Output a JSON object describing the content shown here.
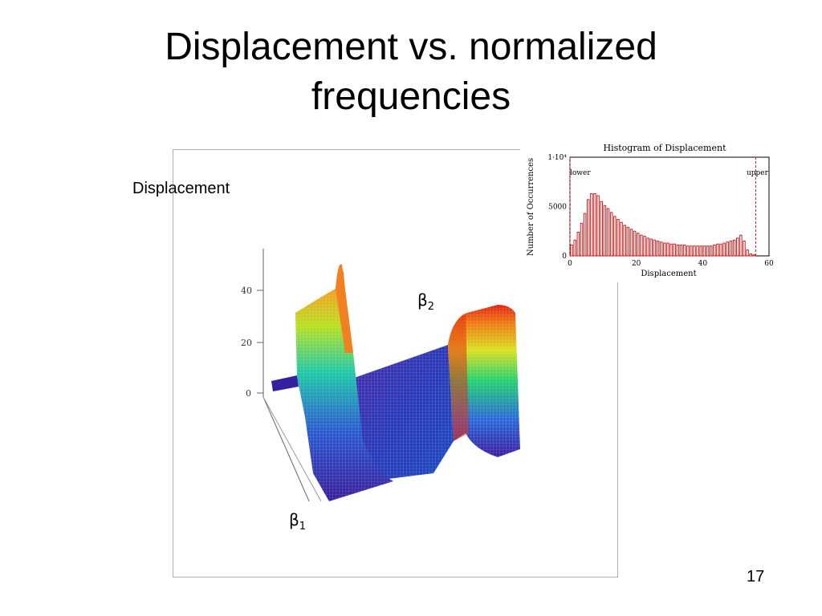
{
  "slide": {
    "title_line1": "Displacement vs. normalized",
    "title_line2": "frequencies",
    "page_number": "17"
  },
  "surface_plot": {
    "z_label": "Displacement",
    "axis1_label": "β",
    "axis1_sub": "1",
    "axis2_label": "β",
    "axis2_sub": "2",
    "z_ticks": [
      "40",
      "20",
      "0"
    ]
  },
  "chart_data": {
    "type": "bar",
    "title": "Histogram of Displacement",
    "xlabel": "Displacement",
    "ylabel": "Number of Occurrences",
    "xlim": [
      0,
      60
    ],
    "ylim": [
      0,
      10000
    ],
    "x_ticks": [
      "0",
      "20",
      "40",
      "60"
    ],
    "y_ticks": [
      "0",
      "5000",
      "1·10⁴"
    ],
    "bar_color": "#cc2222",
    "bin_centers": [
      0.5,
      1.5,
      2.5,
      3.5,
      4.5,
      5.5,
      6.5,
      7.5,
      8.5,
      9.5,
      10.5,
      11.5,
      12.5,
      13.5,
      14.5,
      15.5,
      16.5,
      17.5,
      18.5,
      19.5,
      20.5,
      21.5,
      22.5,
      23.5,
      24.5,
      25.5,
      26.5,
      27.5,
      28.5,
      29.5,
      30.5,
      31.5,
      32.5,
      33.5,
      34.5,
      35.5,
      36.5,
      37.5,
      38.5,
      39.5,
      40.5,
      41.5,
      42.5,
      43.5,
      44.5,
      45.5,
      46.5,
      47.5,
      48.5,
      49.5,
      50.5,
      51.5,
      52.5,
      53.5,
      54.5,
      55.5
    ],
    "values": [
      1100,
      1600,
      2400,
      3300,
      4300,
      5700,
      6300,
      6300,
      6100,
      5500,
      5100,
      4800,
      4400,
      4000,
      3700,
      3400,
      3100,
      2900,
      2700,
      2500,
      2300,
      2100,
      2000,
      1800,
      1700,
      1600,
      1500,
      1400,
      1300,
      1300,
      1200,
      1200,
      1100,
      1100,
      1100,
      1000,
      1000,
      1000,
      1000,
      1000,
      1000,
      1000,
      1000,
      1100,
      1200,
      1200,
      1300,
      1400,
      1500,
      1600,
      1800,
      2100,
      1500,
      600,
      200,
      100
    ],
    "markers": [
      {
        "label": "lower",
        "x": 0
      },
      {
        "label": "upper",
        "x": 56
      }
    ]
  }
}
